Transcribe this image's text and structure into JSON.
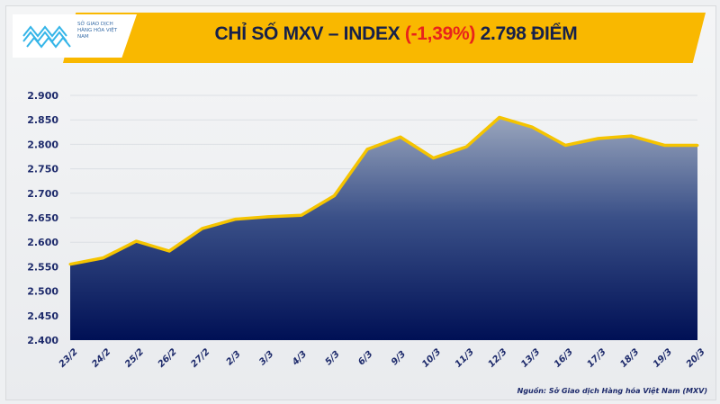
{
  "logo": {
    "text": "SỞ GIAO DỊCH HÀNG HÓA VIỆT NAM"
  },
  "header": {
    "title_prefix": "CHỈ SỐ MXV – INDEX ",
    "change": "(-1,39%)",
    "title_suffix": " 2.798 ĐIỂM"
  },
  "source": "Nguồn: Sở Giao dịch Hàng hóa Việt Nam (MXV)",
  "colors": {
    "banner": "#f9b800",
    "line": "#f5c400",
    "area_top": "#9aa6bd",
    "area_bottom": "#001055",
    "change": "#e8231b"
  },
  "chart_data": {
    "type": "area",
    "title": "CHỈ SỐ MXV – INDEX (-1,39%) 2.798 ĐIỂM",
    "categories": [
      "23/2",
      "24/2",
      "25/2",
      "26/2",
      "27/2",
      "2/3",
      "3/3",
      "4/3",
      "5/3",
      "6/3",
      "9/3",
      "10/3",
      "11/3",
      "12/3",
      "13/3",
      "16/3",
      "17/3",
      "18/3",
      "19/3",
      "20/3"
    ],
    "values": [
      2555,
      2568,
      2602,
      2582,
      2628,
      2647,
      2652,
      2655,
      2695,
      2790,
      2815,
      2772,
      2795,
      2855,
      2835,
      2798,
      2812,
      2817,
      2798,
      2798
    ],
    "ylim": [
      2400,
      2900
    ],
    "yticks": [
      "2.400",
      "2.450",
      "2.500",
      "2.550",
      "2.600",
      "2.650",
      "2.700",
      "2.750",
      "2.800",
      "2.850",
      "2.900"
    ],
    "grid": true,
    "legend": "none"
  }
}
